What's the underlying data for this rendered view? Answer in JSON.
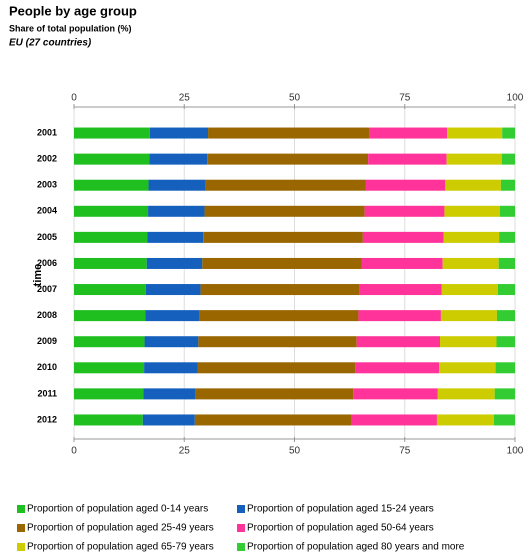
{
  "chart_data": {
    "type": "bar",
    "orientation": "horizontal",
    "stacked": true,
    "title": "People by age group",
    "subtitle": "Share of total population (%)",
    "annotation": "EU (27 countries)",
    "y_label": "time",
    "categories": [
      "2001",
      "2002",
      "2003",
      "2004",
      "2005",
      "2006",
      "2007",
      "2008",
      "2009",
      "2010",
      "2011",
      "2012"
    ],
    "series": [
      {
        "name": "Proportion of population aged 0-14 years",
        "color": "#1fbf1f",
        "values": [
          17.2,
          17.1,
          16.9,
          16.8,
          16.6,
          16.5,
          16.3,
          16.2,
          16.0,
          15.9,
          15.7,
          15.6
        ]
      },
      {
        "name": "Proportion of population aged 15-24 years",
        "color": "#1560bd",
        "values": [
          13.2,
          13.1,
          12.9,
          12.8,
          12.7,
          12.6,
          12.4,
          12.3,
          12.2,
          12.1,
          11.9,
          11.8
        ]
      },
      {
        "name": "Proportion of population aged 25-49 years",
        "color": "#996600",
        "values": [
          36.5,
          36.5,
          36.4,
          36.3,
          36.2,
          36.1,
          36.1,
          36.0,
          35.9,
          35.8,
          35.7,
          35.6
        ]
      },
      {
        "name": "Proportion of population aged 50-64 years",
        "color": "#ff3399",
        "values": [
          17.7,
          17.8,
          18.0,
          18.1,
          18.3,
          18.4,
          18.6,
          18.7,
          18.9,
          19.0,
          19.2,
          19.3
        ]
      },
      {
        "name": "Proportion of population aged 65-79 years",
        "color": "#cccc00",
        "values": [
          12.5,
          12.5,
          12.6,
          12.6,
          12.6,
          12.7,
          12.7,
          12.7,
          12.8,
          12.8,
          12.9,
          12.9
        ]
      },
      {
        "name": "Proportion of population aged 80 years and more",
        "color": "#33cc33",
        "values": [
          2.9,
          3.0,
          3.2,
          3.4,
          3.6,
          3.7,
          3.9,
          4.1,
          4.2,
          4.4,
          4.6,
          4.8
        ]
      }
    ],
    "xlim": [
      0,
      100
    ],
    "xticks": [
      0,
      25,
      50,
      75,
      100
    ],
    "grid": true
  }
}
